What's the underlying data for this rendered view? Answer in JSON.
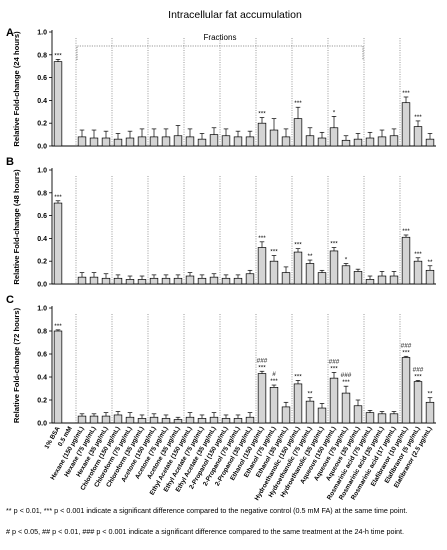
{
  "title": "Intracellular fat accumulation",
  "fractions_label": "Fractions",
  "categories": [
    "1% BSA",
    "0.5 mM",
    "Hexane (150 μg/mL)",
    "Hexane (75 μg/mL)",
    "Hexane (35 μg/mL)",
    "Chloroform (150 μg/mL)",
    "Chloroform (75 μg/mL)",
    "Chloroform (35 μg/mL)",
    "Acetone (150 μg/mL)",
    "Acetone (75 μg/mL)",
    "Acetone (35 μg/mL)",
    "Ethyl Acetate (150 μg/mL)",
    "Ethyl Acetate (75 μg/mL)",
    "Ethyl Acetate (35 μg/mL)",
    "2-Propanol (150 μg/mL)",
    "2-Propanol (75 μg/mL)",
    "2-Propanol (35 μg/mL)",
    "Ethanol (150 μg/mL)",
    "Ethanol (75 μg/mL)",
    "Ethanol (35 μg/mL)",
    "Hydroethanolic (150 μg/mL)",
    "Hydroethanolic (75 μg/mL)",
    "Hydroethanolic (35 μg/mL)",
    "Aqueous (150 μg/mL)",
    "Aqueous (75 μg/mL)",
    "Aqueous (35 μg/mL)",
    "Rosmarinic acid (75 μg/mL)",
    "Rosmarinic acid (35 μg/mL)",
    "Rosmarinic acid (17 μg/mL)",
    "Elafibranor (10 μg/mL)",
    "Elafibranor (5 μg/mL)",
    "Elafibranor (2.5 μg/mL)"
  ],
  "chart_data": [
    {
      "panel": "A",
      "type": "bar",
      "ylabel": "Relative Fold-change (24 hours)",
      "ylim": [
        0,
        1.0
      ],
      "yticks": [
        "0.0",
        "0.2",
        "0.4",
        "0.6",
        "0.8",
        "1.0"
      ],
      "values": [
        0.74,
        0,
        0.08,
        0.07,
        0.07,
        0.06,
        0.07,
        0.08,
        0.08,
        0.08,
        0.09,
        0.08,
        0.06,
        0.1,
        0.09,
        0.08,
        0.08,
        0.2,
        0.14,
        0.08,
        0.24,
        0.09,
        0.07,
        0.16,
        0.05,
        0.06,
        0.07,
        0.08,
        0.09,
        0.38,
        0.17,
        0.06
      ],
      "errors": [
        0.02,
        0,
        0.06,
        0.07,
        0.06,
        0.05,
        0.06,
        0.07,
        0.07,
        0.07,
        0.09,
        0.07,
        0.05,
        0.06,
        0.06,
        0.05,
        0.05,
        0.05,
        0.1,
        0.07,
        0.1,
        0.07,
        0.05,
        0.1,
        0.04,
        0.05,
        0.05,
        0.06,
        0.06,
        0.05,
        0.05,
        0.05
      ],
      "significance": [
        "***",
        "",
        "",
        "",
        "",
        "",
        "",
        "",
        "",
        "",
        "",
        "",
        "",
        "",
        "",
        "",
        "",
        "***",
        "",
        "",
        "***",
        "",
        "",
        "*",
        "",
        "",
        "",
        "",
        "",
        "***",
        "***",
        ""
      ]
    },
    {
      "panel": "B",
      "type": "bar",
      "ylabel": "Relative Fold-change (48 hours)",
      "ylim": [
        0,
        1.0
      ],
      "yticks": [
        "0.0",
        "0.2",
        "0.4",
        "0.6",
        "0.8",
        "1.0"
      ],
      "values": [
        0.71,
        0,
        0.06,
        0.06,
        0.05,
        0.05,
        0.04,
        0.04,
        0.05,
        0.05,
        0.05,
        0.07,
        0.05,
        0.06,
        0.05,
        0.05,
        0.09,
        0.32,
        0.2,
        0.1,
        0.28,
        0.18,
        0.1,
        0.29,
        0.16,
        0.11,
        0.04,
        0.07,
        0.07,
        0.41,
        0.2,
        0.12
      ],
      "errors": [
        0.02,
        0,
        0.04,
        0.04,
        0.04,
        0.03,
        0.03,
        0.03,
        0.03,
        0.03,
        0.03,
        0.03,
        0.03,
        0.03,
        0.03,
        0.03,
        0.03,
        0.05,
        0.05,
        0.05,
        0.03,
        0.03,
        0.02,
        0.03,
        0.02,
        0.02,
        0.03,
        0.04,
        0.04,
        0.02,
        0.03,
        0.04
      ],
      "significance": [
        "***",
        "",
        "",
        "",
        "",
        "",
        "",
        "",
        "",
        "",
        "",
        "",
        "",
        "",
        "",
        "",
        "",
        "***",
        "***",
        "",
        "***",
        "**",
        "",
        "***",
        "*",
        "",
        "",
        "",
        "",
        "***",
        "***",
        "**"
      ]
    },
    {
      "panel": "C",
      "type": "bar",
      "ylabel": "Relative Fold-change (72 hours)",
      "ylim": [
        0,
        1.0
      ],
      "yticks": [
        "0.0",
        "0.2",
        "0.4",
        "0.6",
        "0.8",
        "1.0"
      ],
      "values": [
        0.8,
        0,
        0.06,
        0.06,
        0.06,
        0.07,
        0.05,
        0.04,
        0.05,
        0.04,
        0.03,
        0.05,
        0.04,
        0.05,
        0.04,
        0.04,
        0.05,
        0.43,
        0.31,
        0.14,
        0.34,
        0.19,
        0.13,
        0.39,
        0.26,
        0.15,
        0.09,
        0.08,
        0.08,
        0.57,
        0.36,
        0.18
      ],
      "errors": [
        0.01,
        0,
        0.02,
        0.02,
        0.03,
        0.03,
        0.04,
        0.03,
        0.03,
        0.03,
        0.02,
        0.04,
        0.03,
        0.04,
        0.03,
        0.03,
        0.04,
        0.02,
        0.02,
        0.04,
        0.03,
        0.03,
        0.04,
        0.05,
        0.06,
        0.05,
        0.02,
        0.02,
        0.02,
        0.01,
        0.01,
        0.04
      ],
      "significance": [
        "***",
        "",
        "",
        "",
        "",
        "",
        "",
        "",
        "",
        "",
        "",
        "",
        "",
        "",
        "",
        "",
        "",
        "###\n***",
        "#\n***",
        "",
        "***",
        "**",
        "",
        "###\n***",
        "###\n***",
        "",
        "",
        "",
        "",
        "###\n***",
        "###\n***",
        "**"
      ]
    }
  ],
  "footnotes": [
    "** p < 0.01, *** p < 0.001 indicate a significant difference compared to the negative control (0.5 mM FA) at the same time point.",
    "# p < 0.05, ## p < 0.01, ### p < 0.001 indicate a significant difference compared to the same treatment at the 24-h time point."
  ]
}
